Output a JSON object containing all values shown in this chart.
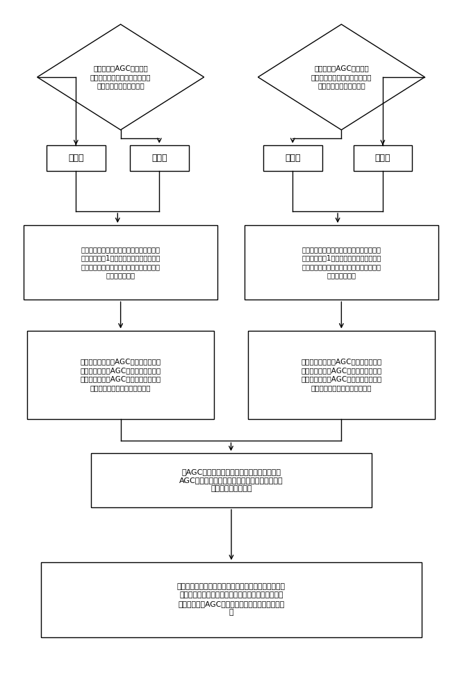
{
  "bg_color": "#ffffff",
  "line_color": "#000000",
  "box_color": "#ffffff",
  "text_color": "#000000",
  "diamond1_text": "一次调频、AGC控制模式\n下，当电网频率超限时，判断频\n率是高频率还是低频率。",
  "diamond2_text": "一次调频、AGC控制模式\n下，当电网频率超限时，判断负\n荷是增负荷还是减负荷。",
  "box_gf_text": "高频率",
  "box_pf_text": "低频率",
  "box_zf_text": "增负荷",
  "box_jf_text": "减负荷",
  "box_logic1_text": "高频率和增负荷做逻辑与运算，若高频率与\n增负荷同时为1，则输出增闭锁信号，同时\n通过脉冲输出模块输出保持信号去控制切换\n块进行速率切换",
  "box_logic2_text": "低频率和减负荷做逻辑与运算，若低频率和\n减负荷同时为1，则输出减闭锁信号，同时\n通过脉冲输出模块输出保持信号去控制切换\n块进行速率切换",
  "box_lock1_text": "增闭锁触动，改变AGC的调节速率与最\n大值设定，限制AGC向增负荷方向调节\n的能力，即闭锁AGC的反向调节功能，\n优先一次调频功能的减负荷指令",
  "box_lock2_text": "减闭锁触动，改变AGC的调节速率与最\n小值设定，限制AGC向减负荷方向调节\n的能力，即闭锁AGC的反向调节功能，\n优先一次调频功能的增负荷指令",
  "box_agc_text": "在AGC反向调节闭锁的同时，一次调频在原有\nAGC指令的基础上叠加功率补偿量，控制汽轮机\n完成发电功率的调节",
  "box_restore_text": "一次调频发挥作用后，频率逐渐恢复至频率限值以内，\n增闭锁或减闭锁信号消除，最大（小）值设定恢复到\n闭锁前状态，AGC系统恢复正负向的功率调整功能\n能",
  "figsize": [
    6.65,
    10.0
  ],
  "dpi": 100
}
